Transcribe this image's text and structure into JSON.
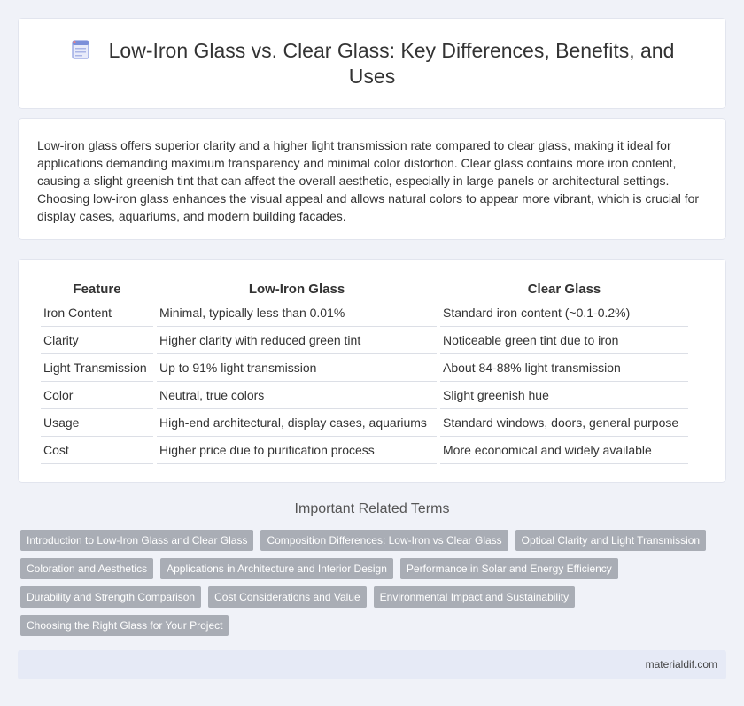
{
  "header": {
    "title": "Low-Iron Glass vs. Clear Glass: Key Differences, Benefits, and Uses",
    "icon": "document-icon"
  },
  "intro": {
    "text": "Low-iron glass offers superior clarity and a higher light transmission rate compared to clear glass, making it ideal for applications demanding maximum transparency and minimal color distortion. Clear glass contains more iron content, causing a slight greenish tint that can affect the overall aesthetic, especially in large panels or architectural settings. Choosing low-iron glass enhances the visual appeal and allows natural colors to appear more vibrant, which is crucial for display cases, aquariums, and modern building facades."
  },
  "table": {
    "headers": [
      "Feature",
      "Low-Iron Glass",
      "Clear Glass"
    ],
    "rows": [
      [
        "Iron Content",
        "Minimal, typically less than 0.01%",
        "Standard iron content (~0.1-0.2%)"
      ],
      [
        "Clarity",
        "Higher clarity with reduced green tint",
        "Noticeable green tint due to iron"
      ],
      [
        "Light Transmission",
        "Up to 91% light transmission",
        "About 84-88% light transmission"
      ],
      [
        "Color",
        "Neutral, true colors",
        "Slight greenish hue"
      ],
      [
        "Usage",
        "High-end architectural, display cases, aquariums",
        "Standard windows, doors, general purpose"
      ],
      [
        "Cost",
        "Higher price due to purification process",
        "More economical and widely available"
      ]
    ]
  },
  "related": {
    "title": "Important Related Terms",
    "tags": [
      "Introduction to Low-Iron Glass and Clear Glass",
      "Composition Differences: Low-Iron vs Clear Glass",
      "Optical Clarity and Light Transmission",
      "Coloration and Aesthetics",
      "Applications in Architecture and Interior Design",
      "Performance in Solar and Energy Efficiency",
      "Durability and Strength Comparison",
      "Cost Considerations and Value",
      "Environmental Impact and Sustainability",
      "Choosing the Right Glass for Your Project"
    ]
  },
  "footer": {
    "site": "materialdif.com"
  },
  "colors": {
    "background": "#f0f2f8",
    "tag_bg": "#a9adb5",
    "footer_bg": "#e6eaf6",
    "icon_accent": "#7b8fd9"
  }
}
